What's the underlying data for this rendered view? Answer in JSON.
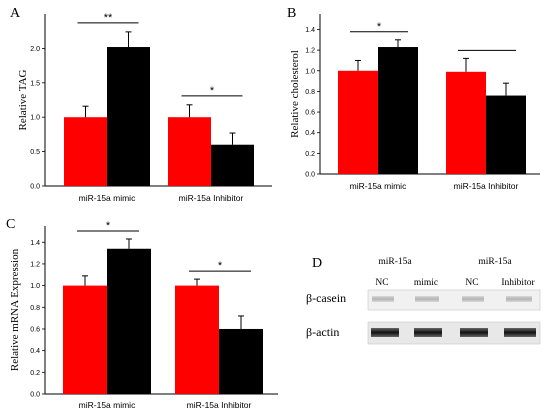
{
  "panels": {
    "A": "A",
    "B": "B",
    "C": "C",
    "D": "D"
  },
  "chart_data": [
    {
      "panel": "A",
      "type": "bar",
      "ylabel": "Relative TAG",
      "ylim": [
        0,
        2.5
      ],
      "yticks": [
        "0.0",
        "0.5",
        "1.0",
        "1.5",
        "2.0"
      ],
      "ytick_values": [
        0,
        0.5,
        1.0,
        1.5,
        2.0
      ],
      "categories": [
        "miR-15a mimic",
        "miR-15a Inhibitor"
      ],
      "series": [
        {
          "color": "#ff0000",
          "values": [
            1.0,
            1.0
          ],
          "errors": [
            0.16,
            0.18
          ]
        },
        {
          "color": "#000000",
          "values": [
            2.02,
            0.6
          ],
          "errors": [
            0.22,
            0.17
          ]
        }
      ],
      "significance": [
        "**",
        "*"
      ]
    },
    {
      "panel": "B",
      "type": "bar",
      "ylabel": "Relative cholesterol",
      "ylim": [
        0,
        1.55
      ],
      "yticks": [
        "0.0",
        "0.2",
        "0.4",
        "0.6",
        "0.8",
        "1.0",
        "1.2",
        "1.4"
      ],
      "ytick_values": [
        0,
        0.2,
        0.4,
        0.6,
        0.8,
        1.0,
        1.2,
        1.4
      ],
      "categories": [
        "miR-15a mimic",
        "miR-15a Inhibitor"
      ],
      "series": [
        {
          "color": "#ff0000",
          "values": [
            1.0,
            0.99
          ],
          "errors": [
            0.1,
            0.13
          ]
        },
        {
          "color": "#000000",
          "values": [
            1.23,
            0.76
          ],
          "errors": [
            0.07,
            0.12
          ]
        }
      ],
      "significance": [
        "*",
        ""
      ]
    },
    {
      "panel": "C",
      "type": "bar",
      "ylabel": "Relative mRNA Expression",
      "ylim": [
        0,
        1.55
      ],
      "yticks": [
        "0.0",
        "0.2",
        "0.4",
        "0.6",
        "0.8",
        "1.0",
        "1.2",
        "1.4"
      ],
      "ytick_values": [
        0,
        0.2,
        0.4,
        0.6,
        0.8,
        1.0,
        1.2,
        1.4
      ],
      "categories": [
        "miR-15a mimic",
        "miR-15a Inhibitor"
      ],
      "series": [
        {
          "color": "#ff0000",
          "values": [
            1.0,
            1.0
          ],
          "errors": [
            0.09,
            0.06
          ]
        },
        {
          "color": "#000000",
          "values": [
            1.34,
            0.6
          ],
          "errors": [
            0.09,
            0.12
          ]
        }
      ],
      "significance": [
        "*",
        "*"
      ]
    }
  ],
  "western_blot": {
    "group1_title": "miR-15a",
    "group2_title": "miR-15a",
    "lanes": [
      "NC",
      "mimic",
      "NC",
      "Inhibitor"
    ],
    "rows": [
      {
        "label": "β-casein",
        "band_intensity": "faint"
      },
      {
        "label": "β-actin",
        "band_intensity": "strong"
      }
    ]
  }
}
